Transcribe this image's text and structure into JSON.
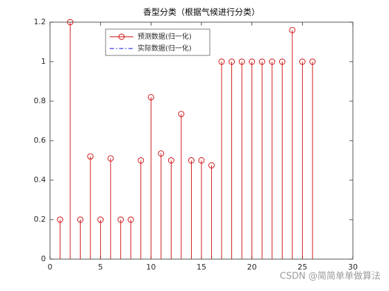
{
  "chart_data": {
    "type": "stem",
    "title": "香型分类（根据气候进行分类）",
    "x": [
      1,
      2,
      3,
      4,
      5,
      6,
      7,
      8,
      9,
      10,
      11,
      12,
      13,
      14,
      15,
      16,
      17,
      18,
      19,
      20,
      21,
      22,
      23,
      24,
      25,
      26
    ],
    "series": [
      {
        "name": "预测数据(归一化)",
        "color": "#cc0000",
        "values": [
          0.2,
          1.2,
          0.2,
          0.52,
          0.2,
          0.51,
          0.2,
          0.2,
          0.5,
          0.82,
          0.535,
          0.5,
          0.735,
          0.5,
          0.5,
          0.475,
          1,
          1,
          1,
          1,
          1,
          1,
          1,
          1.16,
          1,
          1
        ]
      },
      {
        "name": "实际数据(归一化)",
        "color": "#0000ee",
        "values": [
          0.2,
          0.2,
          0.2,
          0.2,
          0.2,
          0.2,
          0.2,
          0.2,
          0.5,
          0.5,
          0.5,
          0.5,
          0.5,
          0.5,
          0.5,
          0.5,
          1,
          1,
          1,
          1,
          1,
          1,
          1,
          1,
          1,
          1
        ]
      }
    ],
    "xlim": [
      0,
      30
    ],
    "xticks": [
      0,
      5,
      10,
      15,
      20,
      25,
      30
    ],
    "ylim": [
      0,
      1.2
    ],
    "yticks": [
      0,
      0.2,
      0.4,
      0.6,
      0.8,
      1,
      1.2
    ],
    "legend": "top-left",
    "watermark": "CSDN @简简单单做算法"
  }
}
